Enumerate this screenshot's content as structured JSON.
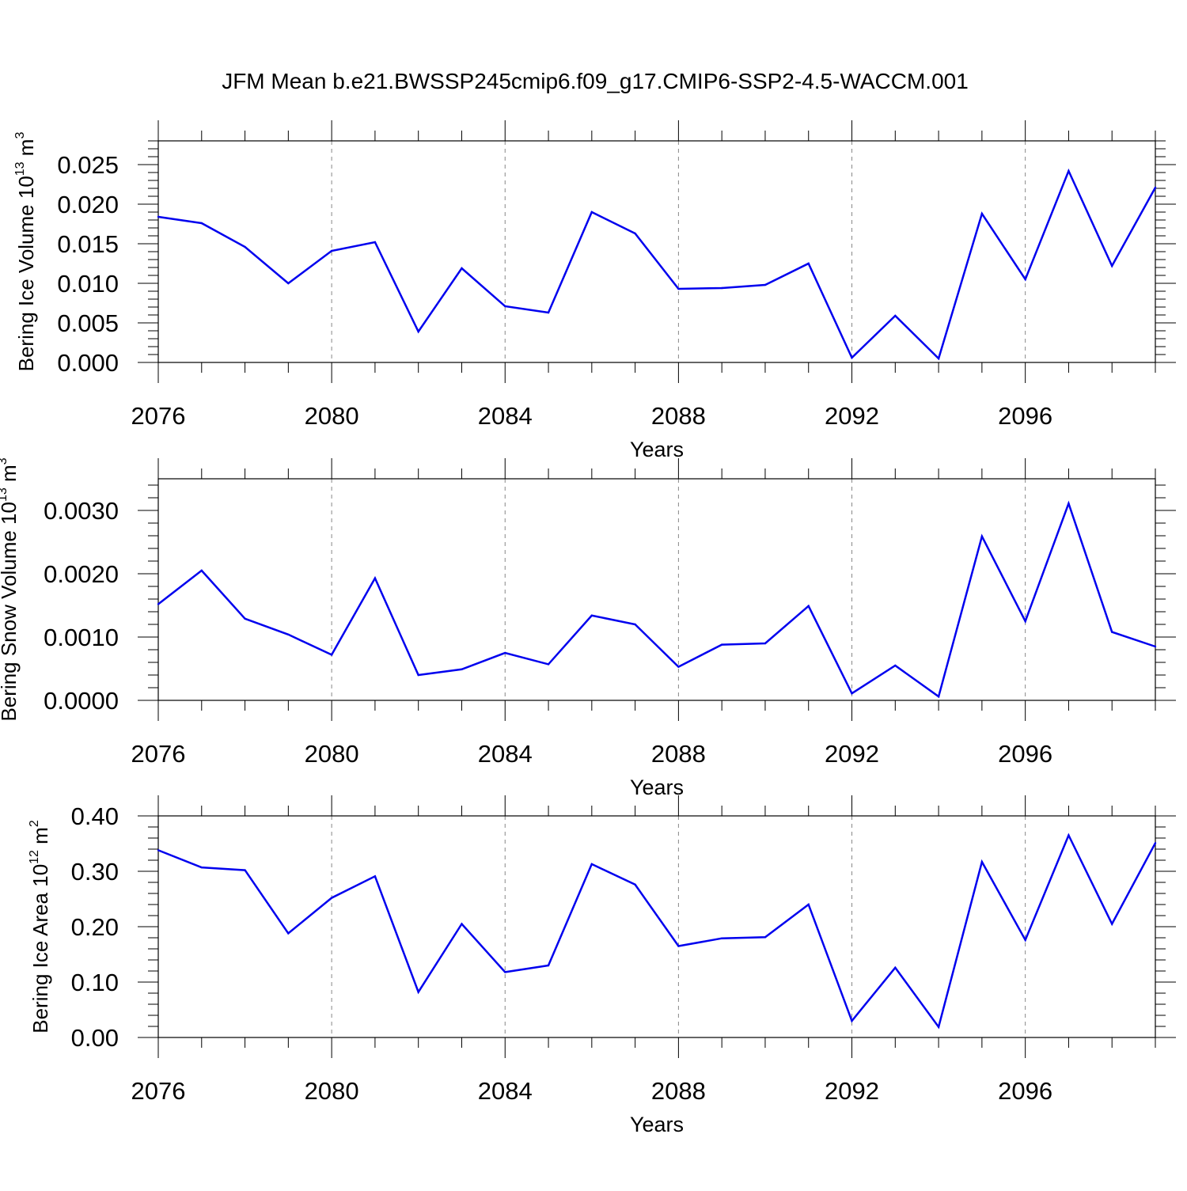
{
  "title": "JFM Mean b.e21.BWSSP245cmip6.f09_g17.CMIP6-SSP2-4.5-WACCM.001",
  "colors": {
    "line": "#0000ee",
    "axis": "#000000",
    "grid": "#888888"
  },
  "chart_data": [
    {
      "type": "line",
      "title": "JFM Mean b.e21.BWSSP245cmip6.f09_g17.CMIP6-SSP2-4.5-WACCM.001",
      "ylabel": {
        "text": "Bering Ice Volume 10",
        "sup1": "13",
        "unit": " m",
        "sup2": "3"
      },
      "xlabel": "Years",
      "xlim": [
        2076,
        2099
      ],
      "ylim": [
        0,
        0.028
      ],
      "yticks": [
        0.0,
        0.005,
        0.01,
        0.015,
        0.02,
        0.025
      ],
      "ytick_labels": [
        "0.000",
        "0.005",
        "0.010",
        "0.015",
        "0.020",
        "0.025"
      ],
      "xticks": [
        2076,
        2080,
        2084,
        2088,
        2092,
        2096
      ],
      "xtick_labels": [
        "2076",
        "2080",
        "2084",
        "2088",
        "2092",
        "2096"
      ],
      "grid": "vertical dashed at 2080, 2084, 2088, 2092, 2096",
      "x": [
        2076,
        2077,
        2078,
        2079,
        2080,
        2081,
        2082,
        2083,
        2084,
        2085,
        2086,
        2087,
        2088,
        2089,
        2090,
        2091,
        2092,
        2093,
        2094,
        2095,
        2096,
        2097,
        2098,
        2099
      ],
      "values": [
        0.0184,
        0.0176,
        0.0146,
        0.01,
        0.0141,
        0.0152,
        0.0039,
        0.0119,
        0.0071,
        0.0063,
        0.019,
        0.0163,
        0.0093,
        0.0094,
        0.0098,
        0.0125,
        0.0006,
        0.0059,
        0.0005,
        0.0188,
        0.0105,
        0.0242,
        0.0122,
        0.0221
      ]
    },
    {
      "type": "line",
      "ylabel": {
        "text": "Bering Snow Volume 10",
        "sup1": "13",
        "unit": " m",
        "sup2": "3"
      },
      "xlabel": "Years",
      "xlim": [
        2076,
        2099
      ],
      "ylim": [
        0,
        0.0035
      ],
      "yticks": [
        0.0,
        0.001,
        0.002,
        0.003
      ],
      "ytick_labels": [
        "0.0000",
        "0.0010",
        "0.0020",
        "0.0030"
      ],
      "xticks": [
        2076,
        2080,
        2084,
        2088,
        2092,
        2096
      ],
      "xtick_labels": [
        "2076",
        "2080",
        "2084",
        "2088",
        "2092",
        "2096"
      ],
      "grid": "vertical dashed at 2080, 2084, 2088, 2092, 2096",
      "x": [
        2076,
        2077,
        2078,
        2079,
        2080,
        2081,
        2082,
        2083,
        2084,
        2085,
        2086,
        2087,
        2088,
        2089,
        2090,
        2091,
        2092,
        2093,
        2094,
        2095,
        2096,
        2097,
        2098,
        2099
      ],
      "values": [
        0.00152,
        0.00205,
        0.00129,
        0.00104,
        0.00072,
        0.00193,
        0.0004,
        0.00049,
        0.00075,
        0.00057,
        0.00134,
        0.0012,
        0.00053,
        0.00088,
        0.0009,
        0.00149,
        0.00011,
        0.00055,
        6e-05,
        0.00259,
        0.00125,
        0.00311,
        0.00108,
        0.00085
      ]
    },
    {
      "type": "line",
      "ylabel": {
        "text": "Bering Ice Area 10",
        "sup1": "12",
        "unit": " m",
        "sup2": "2"
      },
      "xlabel": "Years",
      "xlim": [
        2076,
        2099
      ],
      "ylim": [
        0,
        0.4
      ],
      "yticks": [
        0.0,
        0.1,
        0.2,
        0.3,
        0.4
      ],
      "ytick_labels": [
        "0.00",
        "0.10",
        "0.20",
        "0.30",
        "0.40"
      ],
      "xticks": [
        2076,
        2080,
        2084,
        2088,
        2092,
        2096
      ],
      "xtick_labels": [
        "2076",
        "2080",
        "2084",
        "2088",
        "2092",
        "2096"
      ],
      "grid": "vertical dashed at 2080, 2084, 2088, 2092, 2096",
      "x": [
        2076,
        2077,
        2078,
        2079,
        2080,
        2081,
        2082,
        2083,
        2084,
        2085,
        2086,
        2087,
        2088,
        2089,
        2090,
        2091,
        2092,
        2093,
        2094,
        2095,
        2096,
        2097,
        2098,
        2099
      ],
      "values": [
        0.338,
        0.307,
        0.302,
        0.188,
        0.252,
        0.291,
        0.082,
        0.205,
        0.118,
        0.13,
        0.313,
        0.276,
        0.165,
        0.179,
        0.181,
        0.24,
        0.03,
        0.126,
        0.019,
        0.317,
        0.176,
        0.365,
        0.205,
        0.351
      ]
    }
  ]
}
